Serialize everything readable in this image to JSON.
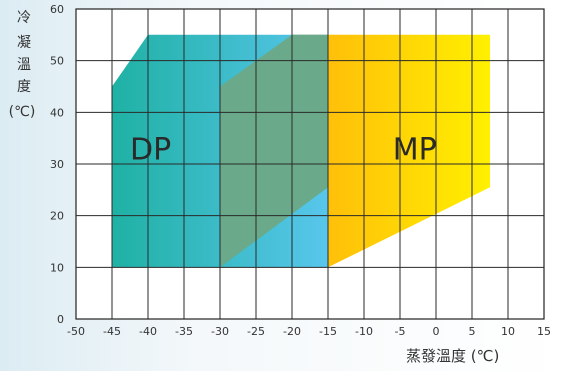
{
  "chart_data": {
    "type": "area",
    "ylabel_chars": [
      "冷",
      "凝",
      "溫",
      "度",
      "(℃)"
    ],
    "xlabel": "蒸發溫度 (℃)",
    "xlim": [
      -50,
      15
    ],
    "ylim": [
      0,
      60
    ],
    "x_ticks": [
      -50,
      -45,
      -40,
      -35,
      -30,
      -25,
      -20,
      -15,
      -10,
      -5,
      0,
      5,
      10,
      15
    ],
    "y_ticks": [
      0,
      10,
      20,
      30,
      40,
      50,
      60
    ],
    "grid": true,
    "regions": [
      {
        "name": "MP",
        "color_start": "#ff9f10",
        "color_end": "#fff000",
        "polygon": [
          [
            -30,
            10
          ],
          [
            -15,
            10
          ],
          [
            7.5,
            25.5
          ],
          [
            7.5,
            55
          ],
          [
            -20,
            55
          ],
          [
            -30,
            45
          ]
        ]
      },
      {
        "name": "DP",
        "color_start": "#1fb1a4",
        "color_end": "#58c6ec",
        "polygon": [
          [
            -45,
            10
          ],
          [
            -15,
            10
          ],
          [
            -15,
            55
          ],
          [
            -40,
            55
          ],
          [
            -45,
            45
          ]
        ]
      },
      {
        "name": "",
        "color": "#6aa98a",
        "polygon": [
          [
            -30,
            10
          ],
          [
            -15,
            25.5
          ],
          [
            -15,
            55
          ],
          [
            -20,
            55
          ],
          [
            -30,
            45
          ]
        ]
      }
    ],
    "labels": [
      {
        "text": "DP",
        "x": -42.5,
        "y": 33
      },
      {
        "text": "MP",
        "x": -6,
        "y": 33
      }
    ]
  }
}
